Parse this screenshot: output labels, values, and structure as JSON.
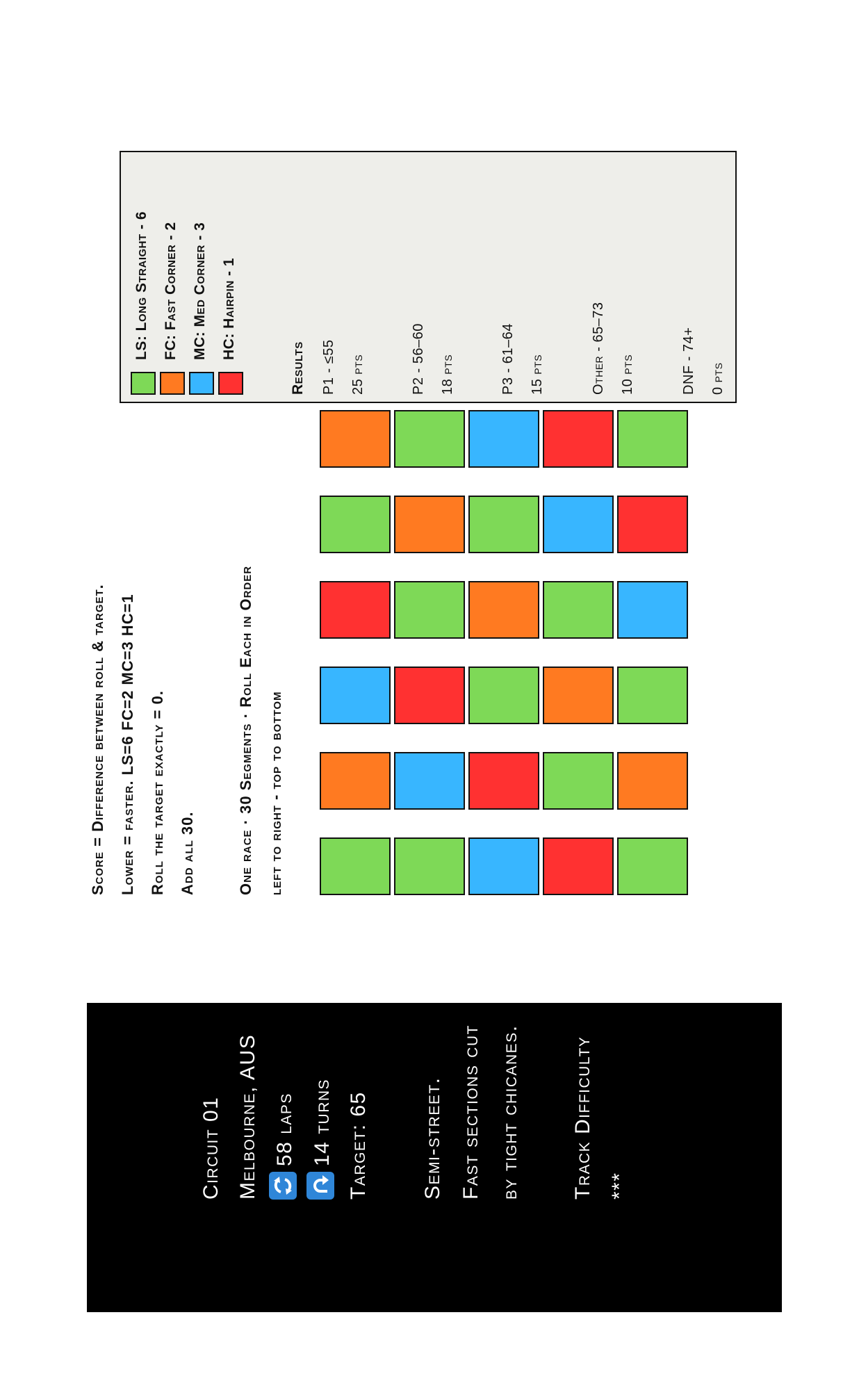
{
  "info": {
    "circuit": "Circuit 01",
    "location": "Melbourne, AUS",
    "laps": "58 laps",
    "turns": "14 turns",
    "target": "Target: 65",
    "desc1": "Semi-street.",
    "desc2": "Fast sections cut",
    "desc3": "by tight chicanes.",
    "difficulty_label": "Track Difficulty",
    "difficulty_value": "***",
    "laps_icon": "cycle-icon",
    "turns_icon": "turn-icon"
  },
  "instructions": {
    "line1": "Score = Difference between roll & target.",
    "line2": "Lower = faster. LS=6 FC=2 MC=3 HC=1",
    "line3": "Roll the target exactly = 0.",
    "line4": "Add all 30.",
    "line5": "One race · 30 Segments · Roll Each in Order",
    "line6": "left to right - top to bottom"
  },
  "colors": {
    "LS": "#7ed957",
    "FC": "#ff7a21",
    "MC": "#38b6ff",
    "HC": "#ff3131"
  },
  "grid": [
    [
      "LS",
      "FC",
      "MC",
      "HC",
      "LS",
      "FC"
    ],
    [
      "LS",
      "MC",
      "HC",
      "LS",
      "FC",
      "LS"
    ],
    [
      "MC",
      "HC",
      "LS",
      "FC",
      "LS",
      "MC"
    ],
    [
      "HC",
      "LS",
      "FC",
      "LS",
      "MC",
      "HC"
    ],
    [
      "LS",
      "FC",
      "LS",
      "MC",
      "HC",
      "LS"
    ]
  ],
  "legend": [
    {
      "code": "LS",
      "label": "LS: Long Straight - 6"
    },
    {
      "code": "FC",
      "label": "FC: Fast Corner - 2"
    },
    {
      "code": "MC",
      "label": "MC: Med Corner - 3"
    },
    {
      "code": "HC",
      "label": "HC: Hairpin - 1"
    }
  ],
  "results": {
    "title": "Results",
    "items": [
      {
        "place": "P1 - ≤55",
        "pts": "25 pts"
      },
      {
        "place": "P2 - 56–60",
        "pts": "18 pts"
      },
      {
        "place": "P3  - 61–64",
        "pts": "15 pts"
      },
      {
        "place": "Other - 65–73",
        "pts": "10 pts"
      },
      {
        "place": "DNF - 74+",
        "pts": "0 pts"
      }
    ]
  }
}
